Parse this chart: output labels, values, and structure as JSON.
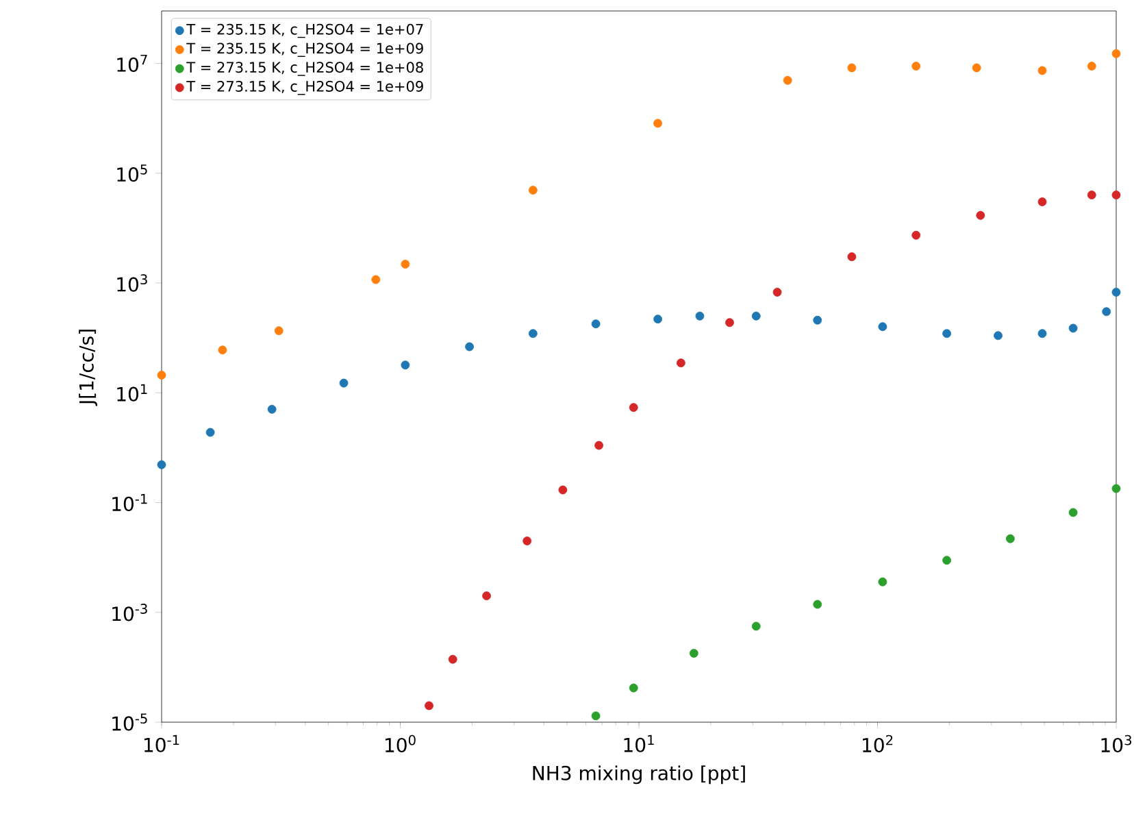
{
  "chart_data": {
    "type": "scatter",
    "xlabel": "NH3 mixing ratio [ppt]",
    "ylabel": "J[1/cc/s]",
    "log": "xy",
    "marker": "circle",
    "legend": "top left",
    "xlim": [
      0.1,
      1000
    ],
    "ylim": [
      1e-05,
      90000000.0
    ],
    "xticks": [
      {
        "value": 0.1,
        "label": "10$^{-1}$"
      },
      {
        "value": 1,
        "label": "10$^{0}$"
      },
      {
        "value": 10,
        "label": "10$^{1}$"
      },
      {
        "value": 100,
        "label": "10$^{2}$"
      },
      {
        "value": 1000,
        "label": "10$^{3}$"
      }
    ],
    "yticks": [
      {
        "value": 1e-05,
        "label": "10$^{-5}$"
      },
      {
        "value": 0.001,
        "label": "10$^{-3}$"
      },
      {
        "value": 0.1,
        "label": "10$^{-1}$"
      },
      {
        "value": 10,
        "label": "10$^{1}$"
      },
      {
        "value": 1000,
        "label": "10$^{3}$"
      },
      {
        "value": 100000,
        "label": "10$^{5}$"
      },
      {
        "value": 10000000,
        "label": "10$^{7}$"
      }
    ],
    "series": [
      {
        "name": "T = 235.15 K, c_H2SO4 = 1e+07",
        "color": "#1f77b4",
        "x": [
          0.1,
          0.16,
          0.29,
          0.58,
          1.05,
          1.95,
          3.6,
          6.6,
          12,
          18,
          31,
          56,
          105,
          195,
          320,
          490,
          660,
          910,
          1000
        ],
        "values": [
          0.49,
          1.9,
          5.0,
          15,
          32,
          69,
          120,
          180,
          220,
          250,
          250,
          210,
          160,
          120,
          110,
          120,
          150,
          300,
          680
        ]
      },
      {
        "name": "T = 235.15 K, c_H2SO4 = 1e+09",
        "color": "#ff7f0e",
        "x": [
          0.1,
          0.18,
          0.31,
          0.79,
          1.05,
          3.6,
          12,
          42,
          78,
          145,
          260,
          490,
          790,
          1000
        ],
        "values": [
          21,
          60,
          135,
          1150,
          2200,
          49000,
          810000,
          4900000,
          8300000,
          8900000,
          8300000,
          7400000,
          8900000,
          15000000
        ]
      },
      {
        "name": "T = 273.15 K, c_H2SO4 = 1e+08",
        "color": "#2ca02c",
        "x": [
          6.6,
          9.5,
          17,
          31,
          56,
          105,
          195,
          360,
          660,
          1000
        ],
        "values": [
          1.3e-05,
          4.2e-05,
          0.00018,
          0.00056,
          0.0014,
          0.0036,
          0.0089,
          0.022,
          0.066,
          0.18
        ]
      },
      {
        "name": "T = 273.15 K, c_H2SO4 = 1e+09",
        "color": "#d62728",
        "x": [
          1.32,
          1.66,
          2.3,
          3.4,
          4.8,
          6.8,
          9.5,
          15,
          24,
          38,
          78,
          145,
          270,
          490,
          790,
          1000
        ],
        "values": [
          2e-05,
          0.00014,
          0.002,
          0.02,
          0.17,
          1.1,
          5.4,
          35,
          190,
          680,
          3000,
          7400,
          17000,
          30000,
          40000,
          40000
        ]
      }
    ]
  }
}
